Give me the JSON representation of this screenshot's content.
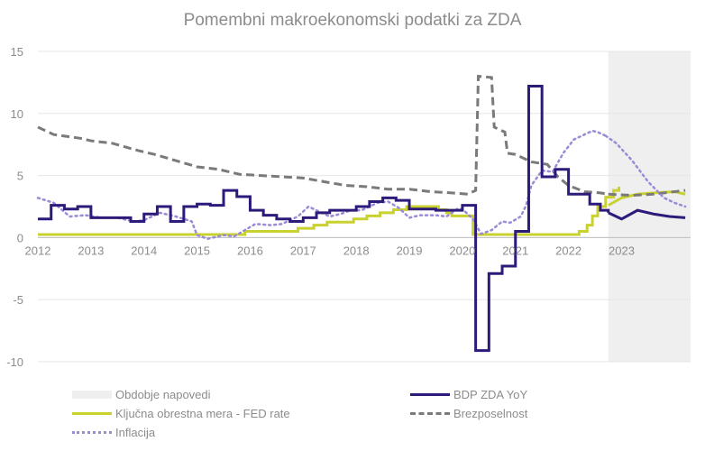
{
  "chart_data": {
    "type": "line",
    "title": "Pomembni makroekonomski podatki za ZDA",
    "xlim": [
      2012,
      2024.3
    ],
    "ylim": [
      -10,
      15
    ],
    "x_ticks": [
      "2012",
      "2013",
      "2014",
      "2015",
      "2016",
      "2017",
      "2018",
      "2019",
      "2020",
      "2021",
      "2022",
      "2023"
    ],
    "y_ticks": [
      "15",
      "10",
      "5",
      "0",
      "-5",
      "-10"
    ],
    "y_tick_values": [
      15,
      10,
      5,
      0,
      -5,
      -10
    ],
    "forecast_period": {
      "name": "Obdobje napovedi",
      "start": 2022.75,
      "end": 2024.3,
      "color": "#efefef"
    },
    "series": [
      {
        "name": "BDP ZDA YoY",
        "color": "#2e1a7a",
        "style": "step-solid",
        "width": 3,
        "points": [
          [
            2012,
            1.5
          ],
          [
            2012.25,
            2.6
          ],
          [
            2012.5,
            2.3
          ],
          [
            2012.75,
            2.5
          ],
          [
            2013,
            1.6
          ],
          [
            2013.5,
            1.6
          ],
          [
            2013.75,
            1.3
          ],
          [
            2014,
            1.9
          ],
          [
            2014.25,
            2.5
          ],
          [
            2014.5,
            1.3
          ],
          [
            2014.75,
            2.5
          ],
          [
            2015,
            2.7
          ],
          [
            2015.25,
            2.6
          ],
          [
            2015.5,
            3.8
          ],
          [
            2015.75,
            3.3
          ],
          [
            2016,
            2.2
          ],
          [
            2016.25,
            1.8
          ],
          [
            2016.5,
            1.5
          ],
          [
            2016.75,
            1.3
          ],
          [
            2017,
            1.6
          ],
          [
            2017.25,
            2.0
          ],
          [
            2017.5,
            2.2
          ],
          [
            2017.75,
            2.2
          ],
          [
            2018,
            2.5
          ],
          [
            2018.25,
            2.9
          ],
          [
            2018.5,
            3.2
          ],
          [
            2018.75,
            3.0
          ],
          [
            2019,
            2.3
          ],
          [
            2019.25,
            2.3
          ],
          [
            2019.5,
            2.2
          ],
          [
            2019.75,
            2.2
          ],
          [
            2020,
            2.6
          ],
          [
            2020.25,
            -9.1
          ],
          [
            2020.5,
            -2.9
          ],
          [
            2020.75,
            -2.3
          ],
          [
            2021,
            0.5
          ],
          [
            2021.25,
            12.2
          ],
          [
            2021.5,
            4.9
          ],
          [
            2021.75,
            5.5
          ],
          [
            2022,
            3.5
          ],
          [
            2022.25,
            3.5
          ],
          [
            2022.4,
            2.7
          ],
          [
            2022.6,
            2.2
          ],
          [
            2022.75,
            2.0
          ]
        ],
        "forecast_points": [
          [
            2022.75,
            2.0
          ],
          [
            2023,
            1.5
          ],
          [
            2023.3,
            2.2
          ],
          [
            2023.6,
            1.9
          ],
          [
            2023.9,
            1.7
          ],
          [
            2024.2,
            1.6
          ]
        ]
      },
      {
        "name": "Ključna obrestna mera - FED rate",
        "color": "#c9d12e",
        "style": "step-solid",
        "width": 3,
        "points": [
          [
            2012,
            0.25
          ],
          [
            2015.9,
            0.5
          ],
          [
            2016.9,
            0.75
          ],
          [
            2017.2,
            1.0
          ],
          [
            2017.45,
            1.25
          ],
          [
            2017.95,
            1.5
          ],
          [
            2018.2,
            1.75
          ],
          [
            2018.45,
            2.0
          ],
          [
            2018.7,
            2.25
          ],
          [
            2018.95,
            2.5
          ],
          [
            2019.55,
            2.25
          ],
          [
            2019.7,
            2.0
          ],
          [
            2019.8,
            1.75
          ],
          [
            2020.2,
            0.25
          ],
          [
            2022.2,
            0.5
          ],
          [
            2022.35,
            1.0
          ],
          [
            2022.45,
            1.75
          ],
          [
            2022.55,
            2.5
          ],
          [
            2022.7,
            3.25
          ],
          [
            2022.85,
            3.8
          ],
          [
            2022.95,
            4.1
          ]
        ],
        "forecast_points": [
          [
            2022.75,
            2.6
          ],
          [
            2023,
            3.2
          ],
          [
            2023.3,
            3.5
          ],
          [
            2023.6,
            3.6
          ],
          [
            2024,
            3.7
          ],
          [
            2024.2,
            3.5
          ]
        ]
      },
      {
        "name": "Brezposelnost",
        "color": "#7a7a7a",
        "style": "dashed",
        "width": 3,
        "points": [
          [
            2012,
            8.9
          ],
          [
            2012.3,
            8.3
          ],
          [
            2012.8,
            8.0
          ],
          [
            2013.0,
            7.8
          ],
          [
            2013.4,
            7.6
          ],
          [
            2013.9,
            7.0
          ],
          [
            2014.2,
            6.7
          ],
          [
            2014.6,
            6.2
          ],
          [
            2015.0,
            5.7
          ],
          [
            2015.4,
            5.5
          ],
          [
            2015.8,
            5.1
          ],
          [
            2016.2,
            5.0
          ],
          [
            2016.6,
            4.9
          ],
          [
            2017.0,
            4.8
          ],
          [
            2017.4,
            4.5
          ],
          [
            2017.8,
            4.2
          ],
          [
            2018.2,
            4.1
          ],
          [
            2018.6,
            3.9
          ],
          [
            2019.0,
            3.9
          ],
          [
            2019.4,
            3.7
          ],
          [
            2019.8,
            3.6
          ],
          [
            2020.1,
            3.5
          ],
          [
            2020.25,
            3.8
          ],
          [
            2020.3,
            13.0
          ],
          [
            2020.55,
            12.9
          ],
          [
            2020.6,
            8.9
          ],
          [
            2020.8,
            8.5
          ],
          [
            2020.85,
            6.8
          ],
          [
            2021.0,
            6.7
          ],
          [
            2021.3,
            6.1
          ],
          [
            2021.6,
            5.9
          ],
          [
            2021.8,
            4.9
          ],
          [
            2022.0,
            4.2
          ],
          [
            2022.3,
            3.7
          ],
          [
            2022.6,
            3.6
          ],
          [
            2022.75,
            3.5
          ]
        ],
        "forecast_points": [
          [
            2022.75,
            3.5
          ],
          [
            2023.2,
            3.4
          ],
          [
            2023.6,
            3.5
          ],
          [
            2024.0,
            3.7
          ],
          [
            2024.2,
            3.8
          ]
        ]
      },
      {
        "name": "Inflacija",
        "color": "#9b8bd6",
        "style": "dotted",
        "width": 2.5,
        "points": [
          [
            2012,
            3.2
          ],
          [
            2012.3,
            2.8
          ],
          [
            2012.6,
            1.7
          ],
          [
            2012.9,
            1.8
          ],
          [
            2013.2,
            1.6
          ],
          [
            2013.5,
            1.6
          ],
          [
            2013.8,
            1.3
          ],
          [
            2014.0,
            1.4
          ],
          [
            2014.3,
            2.0
          ],
          [
            2014.6,
            1.7
          ],
          [
            2014.9,
            1.3
          ],
          [
            2015.0,
            0.2
          ],
          [
            2015.2,
            -0.1
          ],
          [
            2015.5,
            0.2
          ],
          [
            2015.7,
            0.1
          ],
          [
            2015.9,
            0.6
          ],
          [
            2016.1,
            1.1
          ],
          [
            2016.4,
            1.0
          ],
          [
            2016.6,
            1.1
          ],
          [
            2016.9,
            1.7
          ],
          [
            2017.1,
            2.5
          ],
          [
            2017.3,
            2.1
          ],
          [
            2017.5,
            1.7
          ],
          [
            2017.7,
            1.9
          ],
          [
            2017.9,
            2.2
          ],
          [
            2018.1,
            2.2
          ],
          [
            2018.4,
            2.8
          ],
          [
            2018.6,
            2.9
          ],
          [
            2018.8,
            2.4
          ],
          [
            2019.0,
            1.6
          ],
          [
            2019.2,
            1.8
          ],
          [
            2019.5,
            1.8
          ],
          [
            2019.7,
            1.7
          ],
          [
            2019.9,
            2.3
          ],
          [
            2020.0,
            2.3
          ],
          [
            2020.2,
            1.5
          ],
          [
            2020.35,
            0.3
          ],
          [
            2020.55,
            0.6
          ],
          [
            2020.75,
            1.3
          ],
          [
            2020.9,
            1.2
          ],
          [
            2021.1,
            1.7
          ],
          [
            2021.2,
            2.6
          ],
          [
            2021.3,
            4.2
          ],
          [
            2021.5,
            5.4
          ],
          [
            2021.7,
            5.3
          ],
          [
            2021.9,
            6.8
          ],
          [
            2022.1,
            7.9
          ],
          [
            2022.3,
            8.3
          ],
          [
            2022.45,
            8.6
          ],
          [
            2022.55,
            8.5
          ],
          [
            2022.7,
            8.2
          ]
        ],
        "forecast_points": [
          [
            2022.7,
            8.2
          ],
          [
            2022.9,
            7.6
          ],
          [
            2023.2,
            6.2
          ],
          [
            2023.5,
            4.5
          ],
          [
            2023.8,
            3.2
          ],
          [
            2024.0,
            2.8
          ],
          [
            2024.2,
            2.5
          ]
        ]
      }
    ],
    "legend_position": "bottom"
  },
  "legend": {
    "forecast": "Obdobje napovedi",
    "gdp": "BDP ZDA YoY",
    "fed": "Ključna obrestna mera - FED rate",
    "unemployment": "Brezposelnost",
    "inflation": "Inflacija"
  }
}
